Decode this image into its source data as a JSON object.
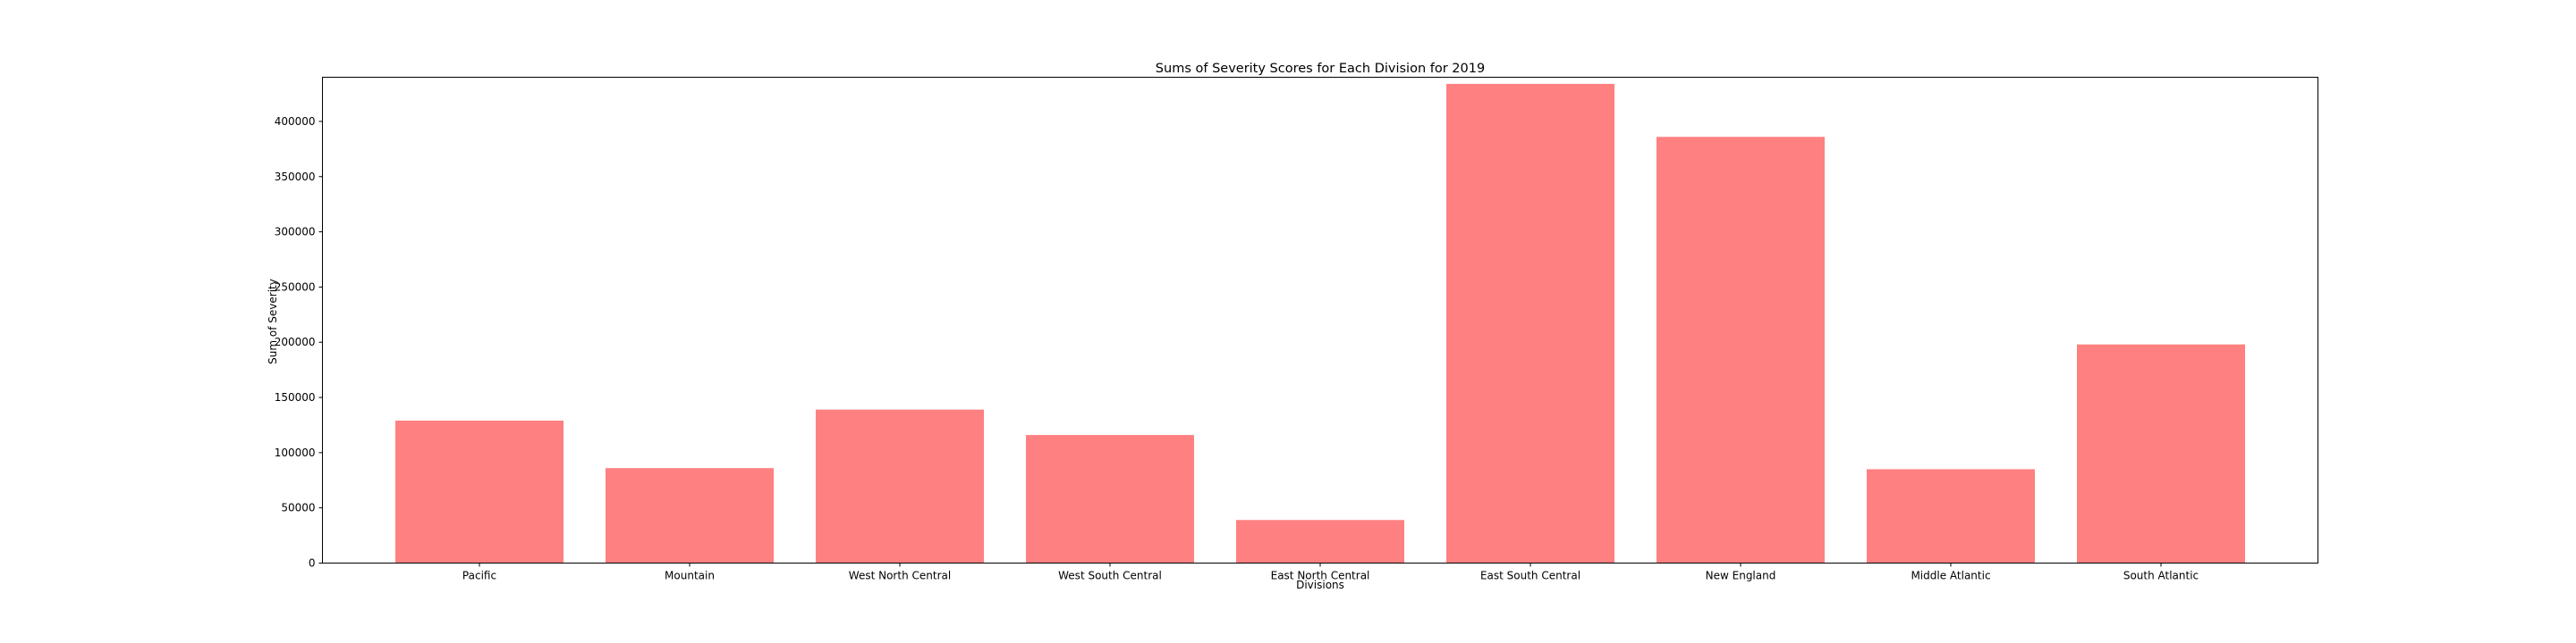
{
  "chart_data": {
    "type": "bar",
    "title": "Sums of Severity Scores for Each Division for 2019",
    "xlabel": "Divisions",
    "ylabel": "Sum of Severity",
    "categories": [
      "Pacific",
      "Mountain",
      "West North Central",
      "West South Central",
      "East North Central",
      "East South Central",
      "New England",
      "Middle Atlantic",
      "South Atlantic"
    ],
    "values": [
      129000,
      86000,
      139000,
      116000,
      39000,
      434000,
      386000,
      85000,
      198000
    ],
    "ylim": [
      0,
      440000
    ],
    "yticks": [
      0,
      50000,
      100000,
      150000,
      200000,
      250000,
      300000,
      350000,
      400000
    ],
    "ytick_labels": [
      "0",
      "50000",
      "100000",
      "150000",
      "200000",
      "250000",
      "300000",
      "350000",
      "400000"
    ],
    "bar_color": "#ff8080",
    "grid": false,
    "legend": false
  }
}
